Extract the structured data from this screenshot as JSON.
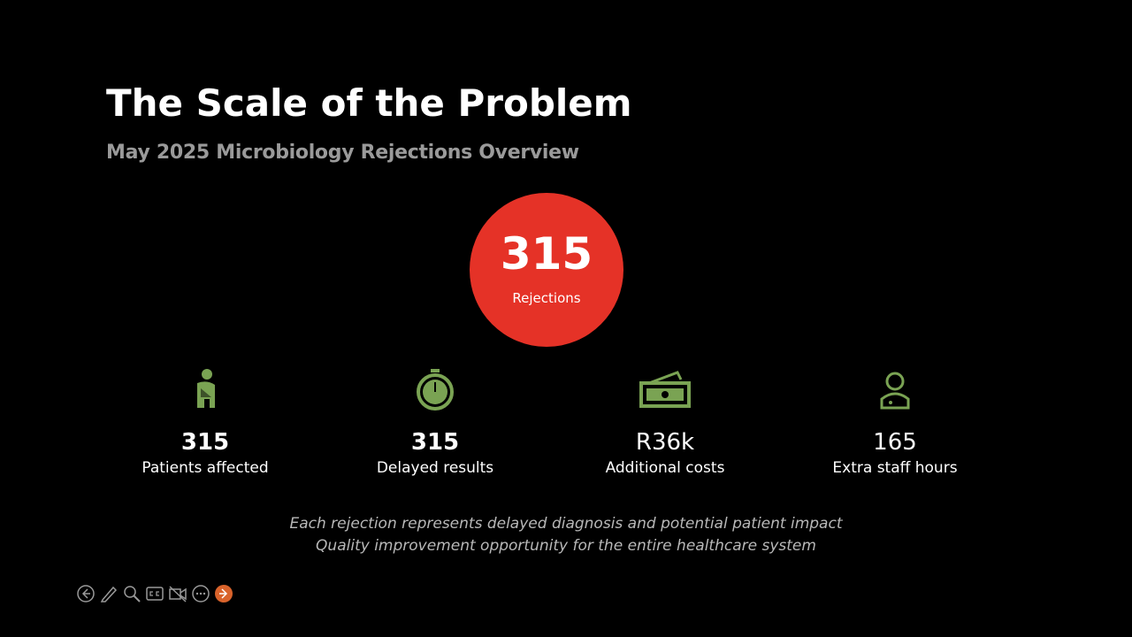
{
  "header": {
    "title": "The Scale of the Problem",
    "subtitle": "May 2025 Microbiology Rejections Overview"
  },
  "hero": {
    "value": 315,
    "label": "Rejections"
  },
  "stats": [
    {
      "value": 315,
      "label": "Patients affected"
    },
    {
      "value": 315,
      "label": "Delayed results"
    },
    {
      "value": "R36k",
      "label": "Additional costs"
    },
    {
      "value": 165,
      "label": "Extra staff hours"
    }
  ],
  "notes": [
    "Each rejection represents delayed diagnosis and potential patient impact",
    "Quality improvement opportunity for the entire healthcare system"
  ]
}
